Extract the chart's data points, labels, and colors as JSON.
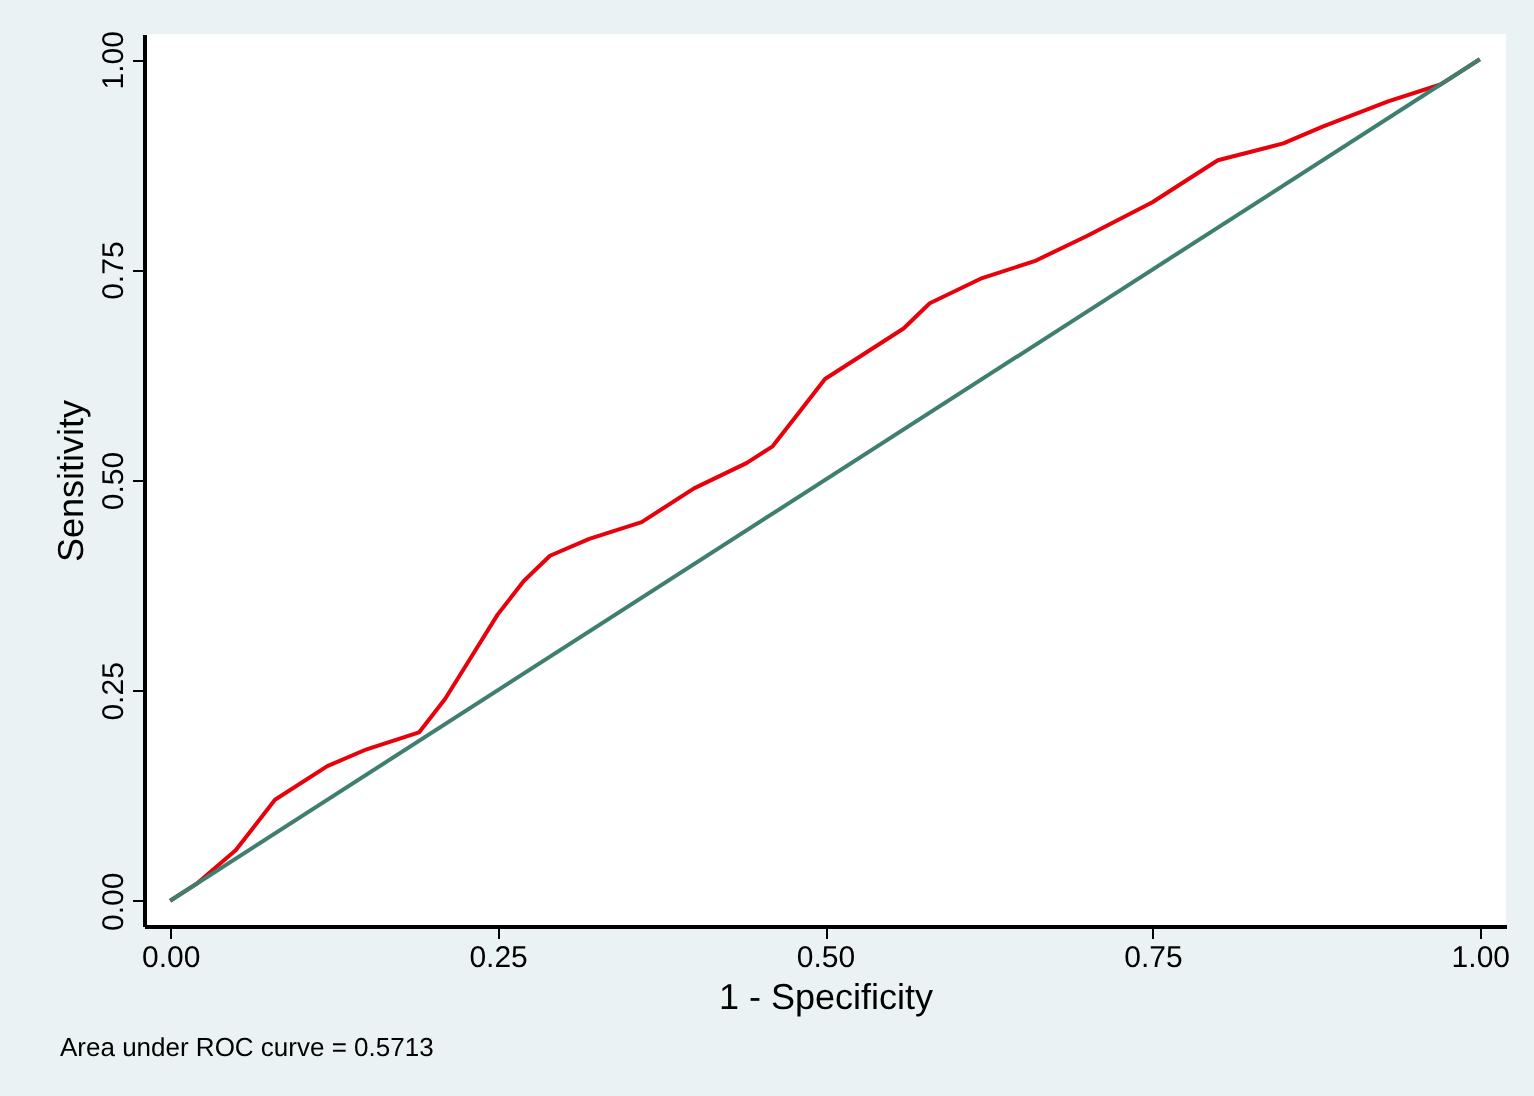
{
  "chart_data": {
    "type": "line",
    "xlabel": "1 - Specificity",
    "ylabel": "Sensitivity",
    "annotations": [
      "Area under ROC curve = 0.5713"
    ],
    "xlim": [
      -0.02,
      1.02
    ],
    "ylim": [
      -0.03,
      1.03
    ],
    "xticks": [
      {
        "value": 0,
        "label": "0.00"
      },
      {
        "value": 0.25,
        "label": "0.25"
      },
      {
        "value": 0.5,
        "label": "0.50"
      },
      {
        "value": 0.75,
        "label": "0.75"
      },
      {
        "value": 1,
        "label": "1.00"
      }
    ],
    "yticks": [
      {
        "value": 0,
        "label": "0.00"
      },
      {
        "value": 0.25,
        "label": "0.25"
      },
      {
        "value": 0.5,
        "label": "0.50"
      },
      {
        "value": 0.75,
        "label": "0.75"
      },
      {
        "value": 1,
        "label": "1.00"
      }
    ],
    "grid": false,
    "marker": "none",
    "line_style": "solid",
    "series": [
      {
        "color": "#e8000b",
        "x": [
          0,
          0.02,
          0.05,
          0.08,
          0.12,
          0.15,
          0.19,
          0.21,
          0.23,
          0.25,
          0.27,
          0.29,
          0.32,
          0.36,
          0.4,
          0.44,
          0.46,
          0.48,
          0.5,
          0.53,
          0.56,
          0.58,
          0.62,
          0.66,
          0.7,
          0.75,
          0.78,
          0.8,
          0.85,
          0.88,
          0.93,
          0.97,
          0.98,
          1
        ],
        "values": [
          0,
          0.02,
          0.06,
          0.12,
          0.16,
          0.18,
          0.2,
          0.24,
          0.29,
          0.34,
          0.38,
          0.41,
          0.43,
          0.45,
          0.49,
          0.52,
          0.54,
          0.58,
          0.62,
          0.65,
          0.68,
          0.71,
          0.74,
          0.76,
          0.79,
          0.83,
          0.86,
          0.88,
          0.9,
          0.92,
          0.95,
          0.97,
          0.98,
          1
        ]
      },
      {
        "color": "#3f7f70",
        "x": [
          0,
          1
        ],
        "values": [
          0,
          1
        ]
      }
    ]
  }
}
